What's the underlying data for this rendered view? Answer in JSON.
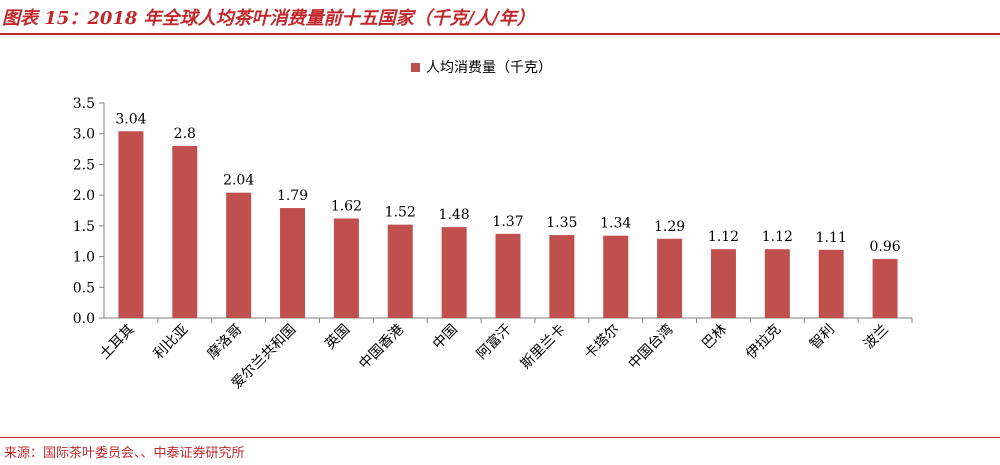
{
  "header": {
    "title": "图表 15：2018 年全球人均茶叶消费量前十五国家（千克/人/年）"
  },
  "footer": {
    "source": "来源：国际茶叶委员会、、中泰证券研究所"
  },
  "colors": {
    "accent": "#c0282c",
    "bar": "#c0504d",
    "axis": "#808080",
    "text": "#000000"
  },
  "chart_data": {
    "type": "bar",
    "categories": [
      "土耳其",
      "利比亚",
      "摩洛哥",
      "爱尔兰共和国",
      "英国",
      "中国香港",
      "中国",
      "阿富汗",
      "斯里兰卡",
      "卡塔尔",
      "中国台湾",
      "巴林",
      "伊拉克",
      "智利",
      "波兰"
    ],
    "series": [
      {
        "name": "人均消费量（千克）",
        "values": [
          3.04,
          2.8,
          2.04,
          1.79,
          1.62,
          1.52,
          1.48,
          1.37,
          1.35,
          1.34,
          1.29,
          1.12,
          1.12,
          1.11,
          0.96
        ],
        "labels": [
          "3.04",
          "2.8",
          "2.04",
          "1.79",
          "1.62",
          "1.52",
          "1.48",
          "1.37",
          "1.35",
          "1.34",
          "1.29",
          "1.12",
          "1.12",
          "1.11",
          "0.96"
        ]
      }
    ],
    "yticks": [
      "0.0",
      "0.5",
      "1.0",
      "1.5",
      "2.0",
      "2.5",
      "3.0",
      "3.5"
    ],
    "ylim": [
      0,
      3.5
    ],
    "legend_position": "top-center",
    "grid": false,
    "xlabel": "",
    "ylabel": ""
  }
}
